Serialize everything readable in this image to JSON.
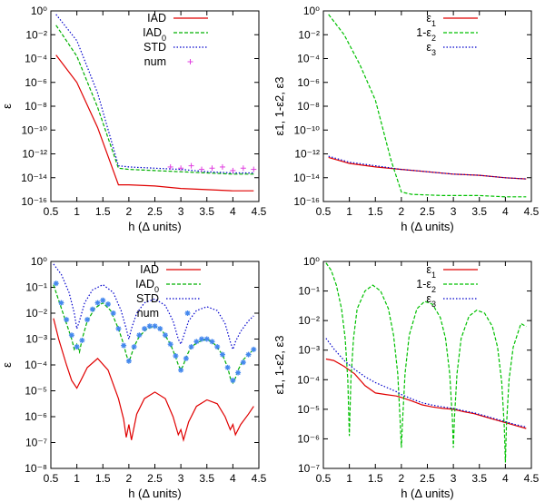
{
  "chart_data": [
    {
      "id": "p1",
      "type": "line",
      "yscale": "log",
      "xlabel": "h (Δ units)",
      "ylabel": "ε",
      "xlim": [
        0.5,
        4.5
      ],
      "ylim_exp": [
        -16,
        0
      ],
      "xticks": [
        "0.5",
        "1",
        "1.5",
        "2",
        "2.5",
        "3",
        "3.5",
        "4",
        "4.5"
      ],
      "yticks_exp": [
        -16,
        -14,
        -12,
        -10,
        -8,
        -6,
        -4,
        -2,
        0
      ],
      "legend": [
        "IAD",
        "IAD0",
        "STD",
        "num"
      ],
      "series": [
        {
          "name": "IAD",
          "color": "#e00000",
          "style": "solid",
          "x": [
            0.6,
            1.0,
            1.4,
            1.8,
            2.0,
            2.5,
            3.0,
            3.5,
            4.0,
            4.4
          ],
          "y_exp": [
            -3.7,
            -6.0,
            -9.8,
            -14.6,
            -14.6,
            -14.7,
            -14.9,
            -15.0,
            -15.1,
            -15.1
          ]
        },
        {
          "name": "IAD0",
          "color": "#00b000",
          "style": "dashed",
          "x": [
            0.6,
            1.0,
            1.4,
            1.8,
            2.0,
            2.5,
            3.0,
            3.5,
            4.0,
            4.4
          ],
          "y_exp": [
            -1.2,
            -3.8,
            -8.1,
            -13.2,
            -13.3,
            -13.4,
            -13.5,
            -13.6,
            -13.7,
            -13.7
          ]
        },
        {
          "name": "STD",
          "color": "#0000cc",
          "style": "dotted",
          "x": [
            0.6,
            1.0,
            1.4,
            1.8,
            2.0,
            2.5,
            3.0,
            3.5,
            4.0,
            4.4
          ],
          "y_exp": [
            -0.3,
            -2.5,
            -6.9,
            -13.0,
            -13.1,
            -13.2,
            -13.3,
            -13.5,
            -13.6,
            -13.6
          ]
        },
        {
          "name": "num",
          "color": "#e040e0",
          "style": "marker-plus",
          "x": [
            2.8,
            3.0,
            3.2,
            3.4,
            3.6,
            3.8,
            4.0,
            4.2,
            4.4
          ],
          "y_exp": [
            -13.1,
            -13.2,
            -13.0,
            -13.3,
            -13.2,
            -13.1,
            -13.4,
            -13.2,
            -13.3
          ]
        }
      ]
    },
    {
      "id": "p2",
      "type": "line",
      "yscale": "log",
      "xlabel": "h (Δ units)",
      "ylabel": "ε1, 1-ε2, ε3",
      "xlim": [
        0.5,
        4.5
      ],
      "ylim_exp": [
        -16,
        0
      ],
      "xticks": [
        "0.5",
        "1",
        "1.5",
        "2",
        "2.5",
        "3",
        "3.5",
        "4",
        "4.5"
      ],
      "yticks_exp": [
        -16,
        -14,
        -12,
        -10,
        -8,
        -6,
        -4,
        -2,
        0
      ],
      "legend": [
        "ε1",
        "1-ε2",
        "ε3"
      ],
      "series": [
        {
          "name": "ε1",
          "color": "#e00000",
          "style": "solid",
          "x": [
            0.6,
            1.0,
            1.5,
            2.0,
            2.5,
            3.0,
            3.5,
            4.0,
            4.4
          ],
          "y_exp": [
            -12.3,
            -12.8,
            -13.1,
            -13.3,
            -13.5,
            -13.7,
            -13.8,
            -14.0,
            -14.1
          ]
        },
        {
          "name": "1-ε2",
          "color": "#00c000",
          "style": "dashed",
          "x": [
            0.6,
            0.9,
            1.2,
            1.5,
            1.8,
            2.0,
            2.2,
            2.8,
            3.5,
            4.0,
            4.4
          ],
          "y_exp": [
            -0.3,
            -2.0,
            -4.5,
            -7.5,
            -12.5,
            -15.2,
            -15.4,
            -15.5,
            -15.5,
            -15.6,
            -15.6
          ]
        },
        {
          "name": "ε3",
          "color": "#0000cc",
          "style": "dotted",
          "x": [
            0.6,
            1.0,
            1.5,
            2.0,
            2.5,
            3.0,
            3.5,
            4.0,
            4.4
          ],
          "y_exp": [
            -12.2,
            -12.7,
            -13.0,
            -13.3,
            -13.5,
            -13.7,
            -13.8,
            -14.0,
            -14.1
          ]
        }
      ]
    },
    {
      "id": "p3",
      "type": "line",
      "yscale": "log",
      "xlabel": "h (Δ units)",
      "ylabel": "ε",
      "xlim": [
        0.5,
        4.5
      ],
      "ylim_exp": [
        -8,
        0
      ],
      "xticks": [
        "0.5",
        "1",
        "1.5",
        "2",
        "2.5",
        "3",
        "3.5",
        "4",
        "4.5"
      ],
      "yticks_exp": [
        -8,
        -7,
        -6,
        -5,
        -4,
        -3,
        -2,
        -1,
        0
      ],
      "legend": [
        "IAD",
        "IAD0",
        "STD",
        "num"
      ],
      "series": [
        {
          "name": "IAD",
          "color": "#e00000",
          "style": "solid",
          "x": [
            0.55,
            0.65,
            0.8,
            0.9,
            1.0,
            1.1,
            1.2,
            1.4,
            1.6,
            1.8,
            1.9,
            1.95,
            2.0,
            2.05,
            2.15,
            2.3,
            2.5,
            2.7,
            2.85,
            2.95,
            3.0,
            3.05,
            3.15,
            3.3,
            3.5,
            3.7,
            3.85,
            3.95,
            4.0,
            4.05,
            4.15,
            4.3,
            4.4
          ],
          "y_exp": [
            -2.2,
            -3.0,
            -4.0,
            -4.6,
            -4.9,
            -4.5,
            -4.1,
            -3.75,
            -4.2,
            -5.3,
            -6.1,
            -6.8,
            -6.3,
            -6.9,
            -5.9,
            -5.3,
            -5.05,
            -5.3,
            -6.0,
            -6.7,
            -6.5,
            -6.9,
            -6.2,
            -5.6,
            -5.35,
            -5.5,
            -6.0,
            -6.5,
            -6.3,
            -6.7,
            -6.3,
            -5.9,
            -5.6
          ]
        },
        {
          "name": "IAD0",
          "color": "#00b000",
          "style": "dashed",
          "x": [
            0.55,
            0.65,
            0.8,
            0.9,
            0.95,
            1.0,
            1.05,
            1.1,
            1.2,
            1.35,
            1.5,
            1.65,
            1.8,
            1.9,
            1.95,
            2.0,
            2.05,
            2.1,
            2.2,
            2.35,
            2.5,
            2.65,
            2.8,
            2.9,
            2.95,
            3.0,
            3.05,
            3.1,
            3.2,
            3.35,
            3.5,
            3.65,
            3.8,
            3.9,
            3.95,
            4.0,
            4.05,
            4.1,
            4.2,
            4.3,
            4.4
          ],
          "y_exp": [
            -0.9,
            -1.5,
            -2.4,
            -3.0,
            -3.4,
            -3.2,
            -3.5,
            -3.0,
            -2.3,
            -1.8,
            -1.6,
            -1.9,
            -2.6,
            -3.2,
            -3.6,
            -3.9,
            -3.6,
            -3.3,
            -2.9,
            -2.6,
            -2.5,
            -2.7,
            -3.2,
            -3.7,
            -4.0,
            -4.2,
            -4.0,
            -3.7,
            -3.3,
            -3.1,
            -3.0,
            -3.2,
            -3.6,
            -4.1,
            -4.5,
            -4.7,
            -4.5,
            -4.2,
            -3.8,
            -3.6,
            -3.4
          ]
        },
        {
          "name": "STD",
          "color": "#0000cc",
          "style": "dotted",
          "x": [
            0.55,
            0.7,
            0.85,
            0.95,
            1.0,
            1.05,
            1.15,
            1.3,
            1.5,
            1.7,
            1.85,
            1.95,
            2.0,
            2.05,
            2.15,
            2.3,
            2.5,
            2.7,
            2.85,
            2.95,
            3.0,
            3.05,
            3.15,
            3.3,
            3.5,
            3.7,
            3.85,
            3.95,
            4.0,
            4.05,
            4.15,
            4.3,
            4.4
          ],
          "y_exp": [
            -0.1,
            -0.5,
            -1.2,
            -2.0,
            -2.6,
            -2.3,
            -1.6,
            -1.1,
            -0.9,
            -1.2,
            -1.9,
            -2.6,
            -3.0,
            -2.6,
            -2.0,
            -1.6,
            -1.45,
            -1.7,
            -2.3,
            -3.0,
            -3.2,
            -2.9,
            -2.3,
            -1.9,
            -1.75,
            -1.9,
            -2.4,
            -3.1,
            -3.4,
            -3.1,
            -2.7,
            -2.3,
            -2.1
          ]
        },
        {
          "name": "num",
          "color": "#4488ee",
          "style": "marker-star",
          "x": [
            0.6,
            0.7,
            0.8,
            0.9,
            1.0,
            1.1,
            1.2,
            1.3,
            1.4,
            1.5,
            1.6,
            1.7,
            1.8,
            1.9,
            2.0,
            2.1,
            2.2,
            2.3,
            2.4,
            2.5,
            2.6,
            2.7,
            2.8,
            2.9,
            3.0,
            3.1,
            3.2,
            3.3,
            3.4,
            3.5,
            3.6,
            3.7,
            3.8,
            3.9,
            4.0,
            4.1,
            4.2,
            4.3,
            4.4
          ],
          "y_exp": [
            -0.85,
            -1.6,
            -2.25,
            -2.85,
            -3.3,
            -3.05,
            -2.25,
            -1.85,
            -1.6,
            -1.5,
            -1.65,
            -2.0,
            -2.6,
            -3.25,
            -3.85,
            -3.3,
            -2.85,
            -2.6,
            -2.5,
            -2.5,
            -2.6,
            -2.85,
            -3.2,
            -3.65,
            -4.2,
            -3.75,
            -3.3,
            -3.1,
            -3.0,
            -3.0,
            -3.1,
            -3.3,
            -3.6,
            -4.1,
            -4.6,
            -4.3,
            -3.9,
            -3.6,
            -3.4
          ]
        }
      ]
    },
    {
      "id": "p4",
      "type": "line",
      "yscale": "log",
      "xlabel": "h (Δ units)",
      "ylabel": "ε1, 1-ε2, ε3",
      "xlim": [
        0.5,
        4.5
      ],
      "ylim_exp": [
        -7,
        0
      ],
      "xticks": [
        "0.5",
        "1",
        "1.5",
        "2",
        "2.5",
        "3",
        "3.5",
        "4",
        "4.5"
      ],
      "yticks_exp": [
        -7,
        -6,
        -5,
        -4,
        -3,
        -2,
        -1,
        0
      ],
      "legend": [
        "ε1",
        "1-ε2",
        "ε3"
      ],
      "series": [
        {
          "name": "ε1",
          "color": "#e00000",
          "style": "solid",
          "x": [
            0.55,
            0.7,
            0.9,
            1.1,
            1.3,
            1.5,
            1.7,
            1.9,
            2.0,
            2.2,
            2.4,
            2.6,
            2.8,
            3.0,
            3.2,
            3.4,
            3.6,
            3.8,
            4.0,
            4.2,
            4.4
          ],
          "y_exp": [
            -3.3,
            -3.35,
            -3.55,
            -3.8,
            -4.2,
            -4.45,
            -4.5,
            -4.55,
            -4.6,
            -4.72,
            -4.85,
            -4.92,
            -4.97,
            -5.0,
            -5.08,
            -5.15,
            -5.25,
            -5.35,
            -5.45,
            -5.55,
            -5.65
          ]
        },
        {
          "name": "1-ε2",
          "color": "#00c000",
          "style": "dashed",
          "x": [
            0.55,
            0.65,
            0.75,
            0.85,
            0.92,
            0.97,
            1.0,
            1.03,
            1.08,
            1.15,
            1.3,
            1.45,
            1.6,
            1.75,
            1.85,
            1.93,
            1.98,
            2.0,
            2.02,
            2.07,
            2.15,
            2.3,
            2.45,
            2.6,
            2.75,
            2.85,
            2.93,
            2.98,
            3.0,
            3.02,
            3.07,
            3.15,
            3.3,
            3.45,
            3.6,
            3.75,
            3.85,
            3.93,
            3.98,
            4.0,
            4.02,
            4.07,
            4.15,
            4.3,
            4.4
          ],
          "y_exp": [
            -0.05,
            -0.3,
            -0.8,
            -1.6,
            -2.6,
            -4.0,
            -5.9,
            -4.0,
            -2.6,
            -1.6,
            -1.0,
            -0.8,
            -1.0,
            -1.6,
            -2.5,
            -3.8,
            -5.5,
            -6.3,
            -5.5,
            -3.8,
            -2.5,
            -1.6,
            -1.35,
            -1.45,
            -1.9,
            -2.6,
            -3.8,
            -5.3,
            -6.3,
            -5.3,
            -3.8,
            -2.6,
            -1.85,
            -1.65,
            -1.75,
            -2.2,
            -2.9,
            -4.1,
            -5.6,
            -6.8,
            -5.6,
            -4.0,
            -2.9,
            -2.1,
            -2.2
          ]
        },
        {
          "name": "ε3",
          "color": "#0000cc",
          "style": "dotted",
          "x": [
            0.55,
            0.7,
            0.9,
            1.1,
            1.3,
            1.5,
            1.7,
            1.9,
            2.0,
            2.2,
            2.4,
            2.6,
            2.8,
            3.0,
            3.2,
            3.4,
            3.6,
            3.8,
            4.0,
            4.2,
            4.4
          ],
          "y_exp": [
            -2.6,
            -2.95,
            -3.35,
            -3.65,
            -3.9,
            -4.1,
            -4.25,
            -4.4,
            -4.5,
            -4.65,
            -4.78,
            -4.86,
            -4.92,
            -4.97,
            -5.05,
            -5.12,
            -5.22,
            -5.32,
            -5.42,
            -5.52,
            -5.6
          ]
        }
      ]
    }
  ]
}
